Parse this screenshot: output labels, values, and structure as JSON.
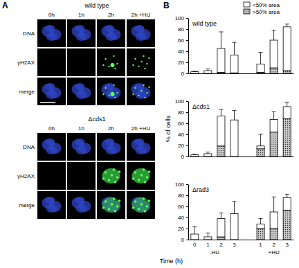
{
  "figure": {
    "panel_labels": [
      "A",
      "B"
    ]
  },
  "image_panel": {
    "strains": [
      "wild type",
      "Δcds1"
    ],
    "columns": [
      "0h",
      "1h",
      "2h",
      "2h +HU"
    ],
    "rows": [
      "DNA",
      "γH2AX",
      "merge"
    ]
  },
  "chart_data": [
    {
      "type": "bar",
      "stacked": true,
      "title": "wild type",
      "legend": "top-right",
      "tick_labels": "y",
      "categories": [
        null,
        null,
        null,
        null,
        null,
        null,
        null,
        null
      ],
      "ylim": [
        0,
        100
      ],
      "yticks": [
        0,
        20,
        40,
        60,
        80,
        100
      ],
      "series": [
        {
          "name": ">50% area",
          "color": "#c8c8c8",
          "values": [
            0,
            0,
            2,
            1,
            null,
            2,
            10,
            5
          ]
        },
        {
          "name": "<50% area",
          "color": "#ffffff",
          "values": [
            3,
            5,
            43,
            32,
            null,
            15,
            50,
            79
          ],
          "errors": [
            1,
            3,
            30,
            23,
            null,
            21,
            18,
            5
          ]
        }
      ]
    },
    {
      "type": "bar",
      "stacked": true,
      "title": "Δcds1",
      "y_label": "% of cells",
      "tick_labels": "y",
      "categories": [
        null,
        null,
        null,
        null,
        null,
        null,
        null,
        null
      ],
      "ylim": [
        0,
        100
      ],
      "yticks": [
        0,
        20,
        40,
        60,
        80,
        100
      ],
      "series": [
        {
          "color": "#c8c8c8",
          "values": [
            0,
            0,
            19,
            0,
            null,
            14,
            44,
            68
          ]
        },
        {
          "color": "#ffffff",
          "values": [
            3,
            5,
            54,
            66,
            null,
            5,
            23,
            22
          ],
          "errors": [
            1,
            3,
            12,
            17,
            null,
            21,
            14,
            8
          ]
        }
      ]
    },
    {
      "type": "bar",
      "stacked": true,
      "title": "Δrad3",
      "x_label": "Time (h)",
      "categories": [
        "0",
        "1",
        "2",
        "3",
        null,
        "1",
        "2",
        "3"
      ],
      "groups": [
        "-HU",
        "-HU",
        "-HU",
        "-HU",
        null,
        "+HU",
        "+HU",
        "+HU"
      ],
      "ylim": [
        0,
        100
      ],
      "yticks": [
        0,
        20,
        40,
        60,
        80,
        100
      ],
      "series": [
        {
          "color": "#c8c8c8",
          "values": [
            0,
            0,
            5,
            0,
            null,
            20,
            20,
            53
          ]
        },
        {
          "color": "#ffffff",
          "values": [
            10,
            5,
            33,
            47,
            null,
            8,
            30,
            23
          ],
          "errors": [
            13,
            7,
            10,
            22,
            null,
            10,
            27,
            6
          ]
        }
      ]
    }
  ]
}
